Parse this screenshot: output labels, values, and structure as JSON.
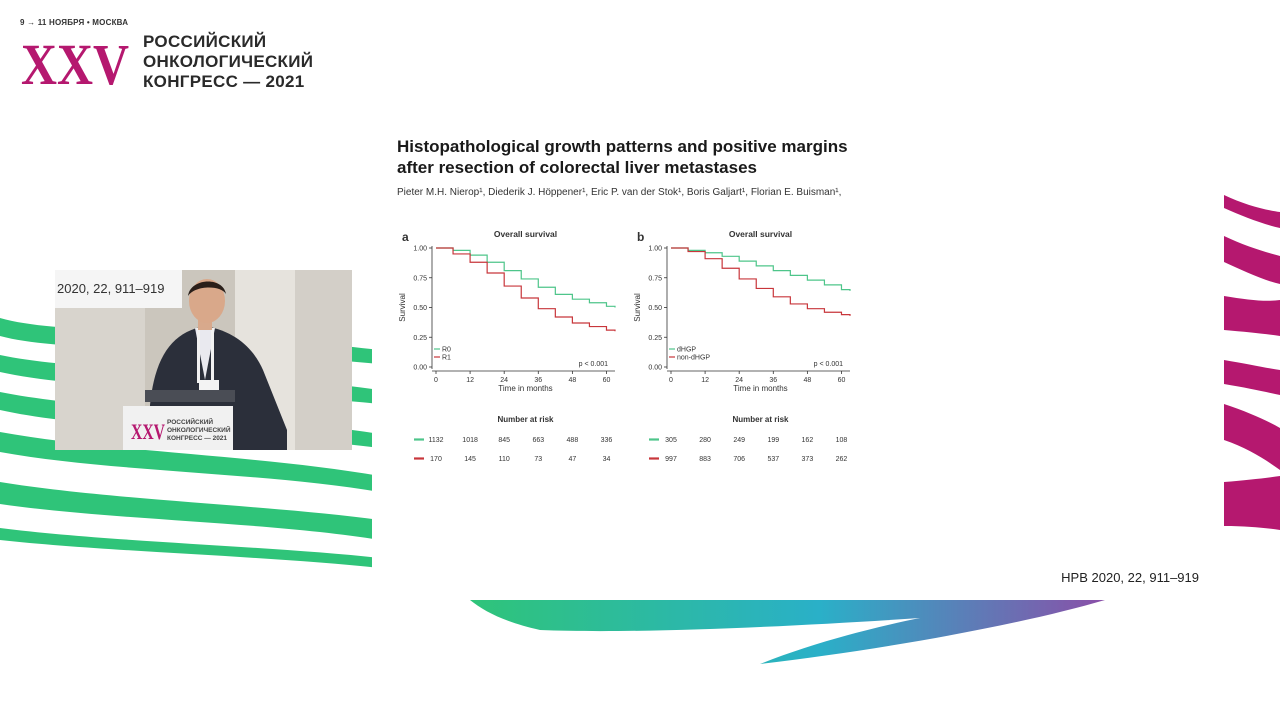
{
  "event": {
    "date_line": "9 → 11 НОЯБРЯ • МОСКВА",
    "logo_mark": "XXV",
    "name_lines": [
      "РОССИЙСКИЙ",
      "ОНКОЛОГИЧЕСКИЙ",
      "КОНГРЕСС — 2021"
    ]
  },
  "video": {
    "ref_text": "2020, 22, 911–919",
    "podium_mark": "XXV",
    "podium_lines": [
      "РОССИЙСКИЙ",
      "ОНКОЛОГИЧЕСКИЙ",
      "КОНГРЕСС — 2021"
    ]
  },
  "slide": {
    "title_lines": [
      "Histopathological growth patterns and positive margins",
      "after resection of colorectal liver metastases"
    ],
    "authors": "Pieter M.H. Nierop¹, Diederik J. Höppener¹, Eric P. van der Stok¹, Boris Galjart¹, Florian E. Buisman¹,",
    "reference": "HPB 2020, 22, 911–919"
  },
  "colors": {
    "magenta": "#b5186f",
    "green": "#2fc479",
    "series_green": "#4ec58a",
    "series_red": "#c8363b"
  },
  "chart_data": [
    {
      "type": "line",
      "panel_label": "a",
      "title": "Overall survival",
      "xlabel": "Time in months",
      "ylabel": "Survival",
      "xlim": [
        0,
        63
      ],
      "ylim": [
        0,
        1
      ],
      "x_ticks": [
        0,
        12,
        24,
        36,
        48,
        60
      ],
      "y_ticks": [
        "0.00",
        "0.25",
        "0.50",
        "0.75",
        "1.00"
      ],
      "p_value": "p < 0.001",
      "legend_position": "bottom-left",
      "series": [
        {
          "name": "R0",
          "color": "#4ec58a",
          "x": [
            0,
            6,
            12,
            18,
            24,
            30,
            36,
            42,
            48,
            54,
            60,
            63
          ],
          "y": [
            1.0,
            0.98,
            0.94,
            0.88,
            0.81,
            0.74,
            0.67,
            0.61,
            0.57,
            0.54,
            0.51,
            0.5
          ]
        },
        {
          "name": "R1",
          "color": "#c8363b",
          "x": [
            0,
            6,
            12,
            18,
            24,
            30,
            36,
            42,
            48,
            54,
            60,
            63
          ],
          "y": [
            1.0,
            0.95,
            0.88,
            0.79,
            0.68,
            0.58,
            0.49,
            0.42,
            0.37,
            0.34,
            0.31,
            0.3
          ]
        }
      ],
      "risk_table": {
        "title": "Number at risk",
        "rows": [
          {
            "color": "#4ec58a",
            "values": [
              1132,
              1018,
              845,
              663,
              488,
              336
            ]
          },
          {
            "color": "#c8363b",
            "values": [
              170,
              145,
              110,
              73,
              47,
              34
            ]
          }
        ]
      }
    },
    {
      "type": "line",
      "panel_label": "b",
      "title": "Overall survival",
      "xlabel": "Time in months",
      "ylabel": "Survival",
      "xlim": [
        0,
        63
      ],
      "ylim": [
        0,
        1
      ],
      "x_ticks": [
        0,
        12,
        24,
        36,
        48,
        60
      ],
      "y_ticks": [
        "0.00",
        "0.25",
        "0.50",
        "0.75",
        "1.00"
      ],
      "p_value": "p < 0.001",
      "legend_position": "bottom-left",
      "series": [
        {
          "name": "dHGP",
          "color": "#4ec58a",
          "x": [
            0,
            6,
            12,
            18,
            24,
            30,
            36,
            42,
            48,
            54,
            60,
            63
          ],
          "y": [
            1.0,
            0.98,
            0.96,
            0.93,
            0.89,
            0.85,
            0.81,
            0.77,
            0.73,
            0.69,
            0.65,
            0.64
          ]
        },
        {
          "name": "non-dHGP",
          "color": "#c8363b",
          "x": [
            0,
            6,
            12,
            18,
            24,
            30,
            36,
            42,
            48,
            54,
            60,
            63
          ],
          "y": [
            1.0,
            0.97,
            0.91,
            0.83,
            0.74,
            0.66,
            0.59,
            0.53,
            0.49,
            0.46,
            0.44,
            0.43
          ]
        }
      ],
      "risk_table": {
        "title": "Number at risk",
        "rows": [
          {
            "color": "#4ec58a",
            "values": [
              305,
              280,
              249,
              199,
              162,
              108
            ]
          },
          {
            "color": "#c8363b",
            "values": [
              997,
              883,
              706,
              537,
              373,
              262
            ]
          }
        ]
      }
    }
  ]
}
